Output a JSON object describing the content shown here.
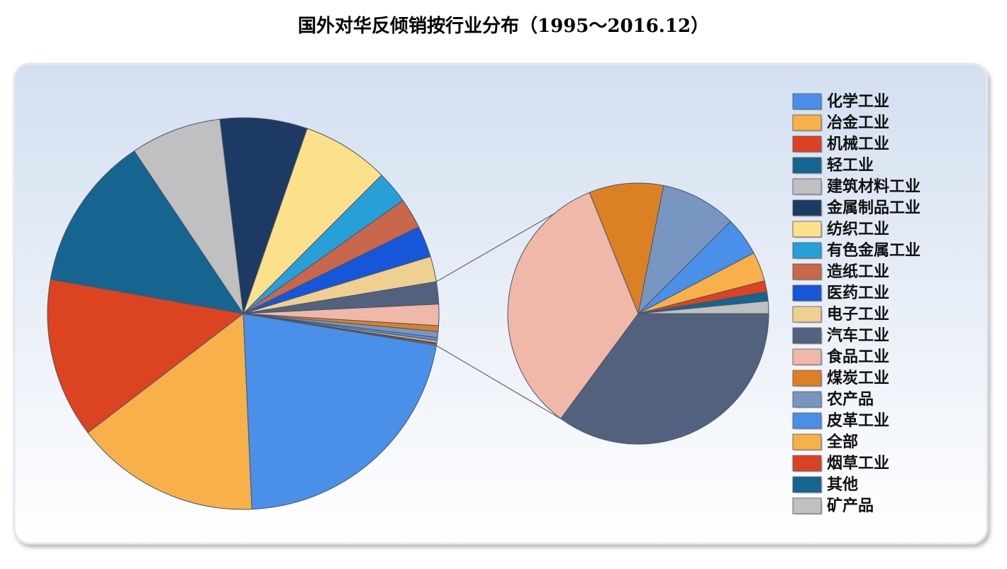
{
  "chart_data": {
    "type": "pie-of-pie",
    "title": "国外对华反倾销按行业分布（1995～2016.12）",
    "categories": [
      "化学工业",
      "冶金工业",
      "机械工业",
      "轻工业",
      "建筑材料工业",
      "金属制品工业",
      "纺织工业",
      "有色金属工业",
      "造纸工业",
      "医药工业",
      "电子工业",
      "汽车工业",
      "食品工业",
      "煤炭工业",
      "农产品",
      "皮革工业",
      "全部",
      "烟草工业",
      "其他",
      "矿产品"
    ],
    "values": [
      21.7,
      15.3,
      13.2,
      12.8,
      7.5,
      7.2,
      7.2,
      2.7,
      2.5,
      2.6,
      2.1,
      1.83,
      1.76,
      0.48,
      0.49,
      0.25,
      0.19,
      0.07,
      0.06,
      0.08
    ],
    "colors": [
      "#4a8fe8",
      "#f8b04a",
      "#dc4321",
      "#156590",
      "#c0c0c0",
      "#1c3a63",
      "#fde08a",
      "#27a0d8",
      "#c8674a",
      "#1656d8",
      "#f0d090",
      "#52627e",
      "#f0b8a8",
      "#dc8024",
      "#7896c0",
      "#4a8fe8",
      "#f8b04a",
      "#dc4321",
      "#156590",
      "#c0c0c0"
    ],
    "subpie_from": 11,
    "legend": "right"
  }
}
